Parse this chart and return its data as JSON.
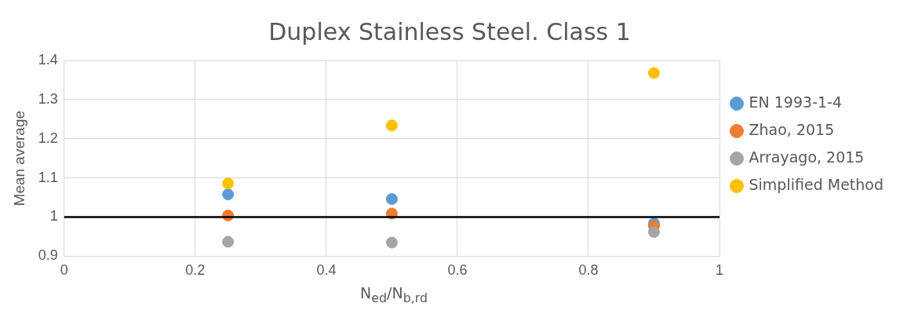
{
  "chart_data": {
    "type": "scatter",
    "title": "Duplex Stainless Steel. Class 1",
    "xlabel": "N$_{ed}$/N$_{b,rd}$",
    "ylabel": "Mean average",
    "x": [
      0.25,
      0.5,
      0.9
    ],
    "series": [
      {
        "name": "EN 1993-1-4",
        "color": "#5b9bd5",
        "values": [
          1.058,
          1.046,
          0.984
        ]
      },
      {
        "name": "Zhao, 2015",
        "color": "#ed7d31",
        "values": [
          1.004,
          1.009,
          0.977
        ]
      },
      {
        "name": "Arrayago, 2015",
        "color": "#a5a5a5",
        "values": [
          0.937,
          0.935,
          0.962
        ]
      },
      {
        "name": "Simplified Method",
        "color": "#ffc000",
        "values": [
          1.086,
          1.234,
          1.368
        ]
      }
    ],
    "xlim": [
      0,
      1
    ],
    "xticks": [
      0,
      0.2,
      0.4,
      0.6,
      0.8,
      1
    ],
    "ylim": [
      0.9,
      1.4
    ],
    "yticks": [
      0.9,
      1,
      1.1,
      1.2,
      1.3,
      1.4
    ],
    "ref_lines": [
      {
        "axis": "y",
        "value": 1,
        "color": "#000000"
      }
    ],
    "grid": true,
    "legend": "right",
    "marker": "circle"
  }
}
